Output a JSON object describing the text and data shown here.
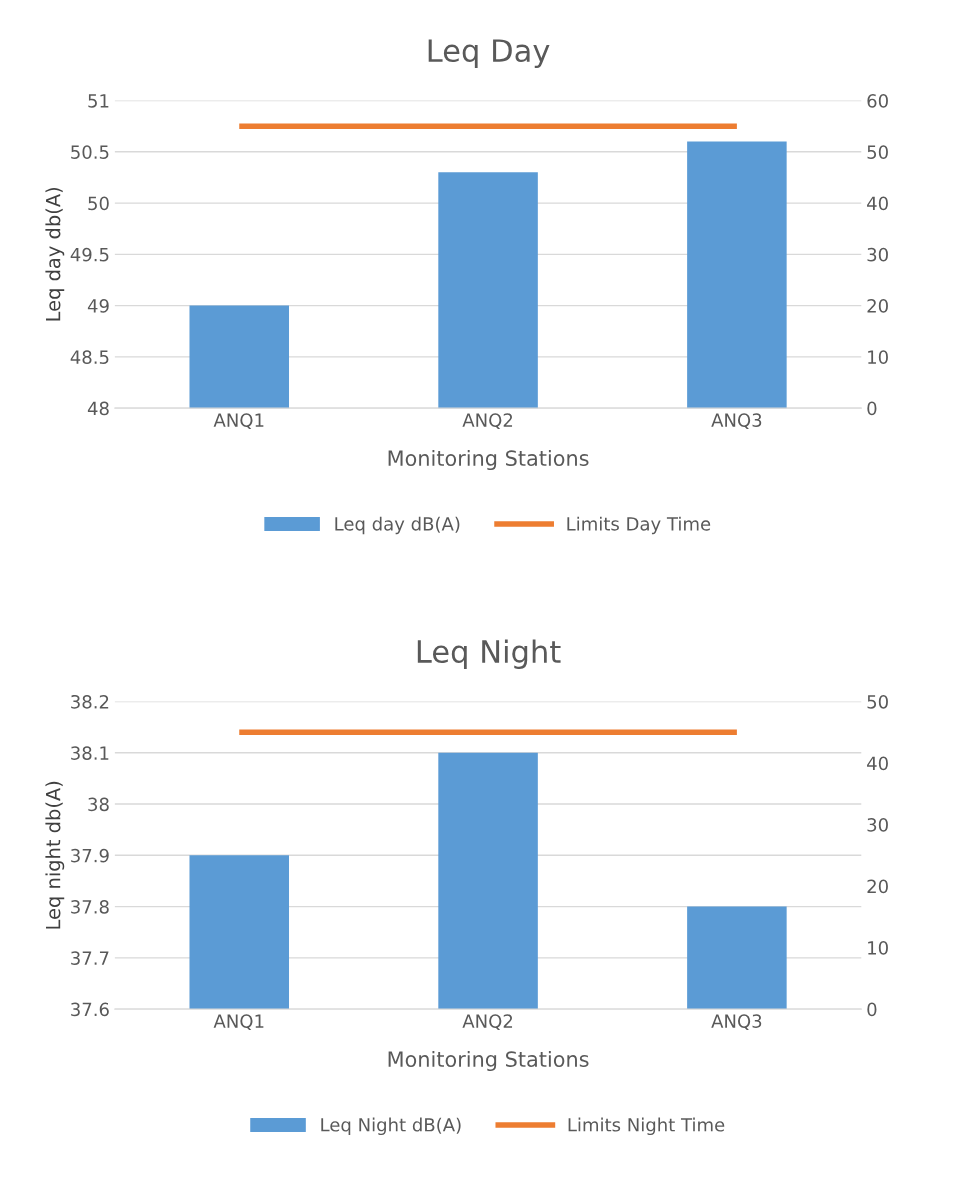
{
  "chart_data": [
    {
      "type": "bar",
      "title": "Leq Day",
      "xlabel": "Monitoring Stations",
      "ylabel": "Leq day db(A)",
      "categories": [
        "ANQ1",
        "ANQ2",
        "ANQ3"
      ],
      "series": [
        {
          "name": "Leq day dB(A)",
          "color": "#5b9bd5",
          "values": [
            49,
            50.3,
            50.6
          ]
        },
        {
          "name": "Limits Day Time",
          "type": "line",
          "axis": "y2",
          "color": "#ed7d31",
          "values": [
            55,
            55,
            55
          ]
        }
      ],
      "ylim": [
        48,
        51
      ],
      "yticks": [
        48,
        48.5,
        49,
        49.5,
        50,
        50.5,
        51
      ],
      "y2lim": [
        0,
        60
      ],
      "y2ticks": [
        0,
        10,
        20,
        30,
        40,
        50,
        60
      ],
      "grid": "y",
      "legend": "bottom"
    },
    {
      "type": "bar",
      "title": "Leq Night",
      "xlabel": "Monitoring Stations",
      "ylabel": "Leq night db(A)",
      "categories": [
        "ANQ1",
        "ANQ2",
        "ANQ3"
      ],
      "series": [
        {
          "name": "Leq Night dB(A)",
          "color": "#5b9bd5",
          "values": [
            37.9,
            38.1,
            37.8
          ]
        },
        {
          "name": "Limits Night Time",
          "type": "line",
          "axis": "y2",
          "color": "#ed7d31",
          "values": [
            45,
            45,
            45
          ]
        }
      ],
      "ylim": [
        37.6,
        38.2
      ],
      "yticks": [
        37.6,
        37.7,
        37.8,
        37.9,
        38,
        38.1,
        38.2
      ],
      "y2lim": [
        0,
        50
      ],
      "y2ticks": [
        0,
        10,
        20,
        30,
        40,
        50
      ],
      "grid": "y",
      "legend": "bottom"
    }
  ]
}
